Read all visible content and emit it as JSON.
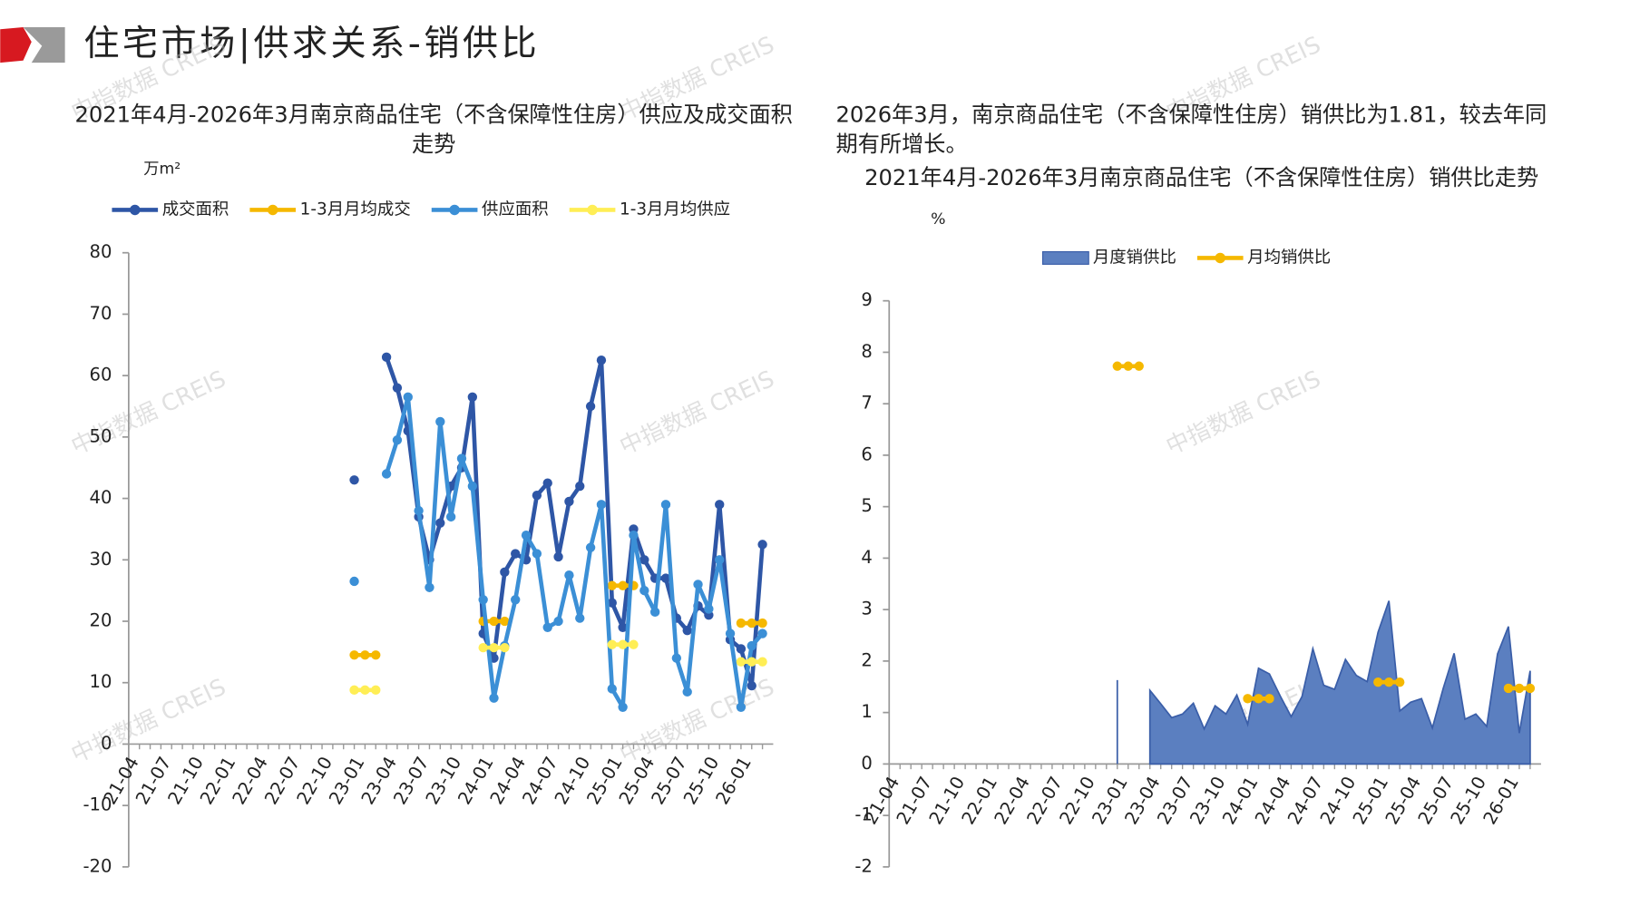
{
  "header": {
    "title": "住宅市场|供求关系-销供比"
  },
  "note": "2026年3月，南京商品住宅（不含保障性住房）销供比为1.81，较去年同期有所增长。",
  "watermark": "中指数据 CREIS",
  "chart_data": [
    {
      "type": "line",
      "title": "2021年4月-2026年3月南京商品住宅（不含保障性住房）供应及成交面积走势",
      "y_label": "万m²",
      "legend": "top",
      "categories": [
        "21-04",
        null,
        null,
        "21-07",
        null,
        null,
        "21-10",
        null,
        null,
        "22-01",
        null,
        null,
        "22-04",
        null,
        null,
        "22-07",
        null,
        null,
        "22-10",
        null,
        null,
        "23-01",
        null,
        null,
        "23-04",
        null,
        null,
        "23-07",
        null,
        null,
        "23-10",
        null,
        null,
        "24-01",
        null,
        null,
        "24-04",
        null,
        null,
        "24-07",
        null,
        null,
        "24-10",
        null,
        null,
        "25-01",
        null,
        null,
        "25-04",
        null,
        null,
        "25-07",
        null,
        null,
        "25-10",
        null,
        null,
        "26-01",
        null,
        null
      ],
      "ylim": [
        -20,
        80
      ],
      "yticks": [
        -20,
        -10,
        0,
        10,
        20,
        30,
        40,
        50,
        60,
        70,
        80
      ],
      "series": [
        {
          "name": "成交面积",
          "color": "#2e56a6",
          "values": [
            null,
            null,
            null,
            null,
            null,
            null,
            null,
            null,
            null,
            null,
            null,
            null,
            null,
            null,
            null,
            null,
            null,
            null,
            null,
            null,
            null,
            43,
            null,
            null,
            63,
            58,
            51,
            37,
            30,
            36,
            42,
            45,
            56.5,
            18,
            14,
            28,
            31,
            30,
            40.5,
            42.5,
            30.5,
            39.5,
            42,
            55,
            62.5,
            23,
            19,
            35,
            30,
            27,
            27,
            20.5,
            18.5,
            22.5,
            21,
            39,
            17,
            15.5,
            9.5,
            32.5
          ]
        },
        {
          "name": "1-3月月均成交",
          "color": "#f5b800",
          "values": [
            null,
            null,
            null,
            null,
            null,
            null,
            null,
            null,
            null,
            null,
            null,
            null,
            null,
            null,
            null,
            null,
            null,
            null,
            null,
            null,
            null,
            14.5,
            14.5,
            14.5,
            null,
            null,
            null,
            null,
            null,
            null,
            null,
            null,
            null,
            20,
            20,
            20,
            null,
            null,
            null,
            null,
            null,
            null,
            null,
            null,
            null,
            25.8,
            25.8,
            25.8,
            null,
            null,
            null,
            null,
            null,
            null,
            null,
            null,
            null,
            19.7,
            19.7,
            19.7
          ]
        },
        {
          "name": "供应面积",
          "color": "#3b8fd6",
          "values": [
            null,
            null,
            null,
            null,
            null,
            null,
            null,
            null,
            null,
            null,
            null,
            null,
            null,
            null,
            null,
            null,
            null,
            null,
            null,
            null,
            null,
            26.5,
            null,
            null,
            44,
            49.5,
            56.5,
            38,
            25.5,
            52.5,
            37,
            46.5,
            42,
            23.5,
            7.5,
            16,
            23.5,
            34,
            31,
            19,
            20,
            27.5,
            20.5,
            32,
            39,
            9,
            6,
            34,
            25,
            21.5,
            39,
            14,
            8.5,
            26,
            22,
            30,
            18,
            6,
            16,
            18
          ]
        },
        {
          "name": "1-3月月均供应",
          "color": "#ffee55",
          "values": [
            null,
            null,
            null,
            null,
            null,
            null,
            null,
            null,
            null,
            null,
            null,
            null,
            null,
            null,
            null,
            null,
            null,
            null,
            null,
            null,
            null,
            8.8,
            8.8,
            8.8,
            null,
            null,
            null,
            null,
            null,
            null,
            null,
            null,
            null,
            15.7,
            15.7,
            15.7,
            null,
            null,
            null,
            null,
            null,
            null,
            null,
            null,
            null,
            16.2,
            16.2,
            16.2,
            null,
            null,
            null,
            null,
            null,
            null,
            null,
            null,
            null,
            13.4,
            13.4,
            13.4
          ]
        }
      ]
    },
    {
      "type": "area",
      "title": "2021年4月-2026年3月南京商品住宅（不含保障性住房）销供比走势",
      "y_label": "%",
      "legend": "top",
      "categories": [
        "21-04",
        null,
        null,
        "21-07",
        null,
        null,
        "21-10",
        null,
        null,
        "22-01",
        null,
        null,
        "22-04",
        null,
        null,
        "22-07",
        null,
        null,
        "22-10",
        null,
        null,
        "23-01",
        null,
        null,
        "23-04",
        null,
        null,
        "23-07",
        null,
        null,
        "23-10",
        null,
        null,
        "24-01",
        null,
        null,
        "24-04",
        null,
        null,
        "24-07",
        null,
        null,
        "24-10",
        null,
        null,
        "25-01",
        null,
        null,
        "25-04",
        null,
        null,
        "25-07",
        null,
        null,
        "25-10",
        null,
        null,
        "26-01",
        null,
        null
      ],
      "ylim": [
        -2,
        9
      ],
      "yticks": [
        -2,
        -1,
        0,
        1,
        2,
        3,
        4,
        5,
        6,
        7,
        8,
        9
      ],
      "series": [
        {
          "name": "月度销供比",
          "color": "#5b7fc0",
          "type": "area",
          "values": [
            null,
            null,
            null,
            null,
            null,
            null,
            null,
            null,
            null,
            null,
            null,
            null,
            null,
            null,
            null,
            null,
            null,
            null,
            null,
            null,
            null,
            1.63,
            null,
            null,
            1.43,
            1.17,
            0.9,
            0.97,
            1.18,
            0.68,
            1.13,
            0.97,
            1.34,
            0.77,
            1.86,
            1.75,
            1.32,
            0.92,
            1.31,
            2.24,
            1.53,
            1.45,
            2.03,
            1.72,
            1.6,
            2.56,
            3.17,
            1.03,
            1.2,
            1.27,
            0.7,
            1.47,
            2.15,
            0.87,
            0.97,
            0.73,
            2.14,
            2.67,
            0.6,
            1.81
          ]
        },
        {
          "name": "月均销供比",
          "color": "#f5b800",
          "type": "line",
          "values": [
            null,
            null,
            null,
            null,
            null,
            null,
            null,
            null,
            null,
            null,
            null,
            null,
            null,
            null,
            null,
            null,
            null,
            null,
            null,
            null,
            null,
            7.73,
            7.73,
            7.73,
            null,
            null,
            null,
            null,
            null,
            null,
            null,
            null,
            null,
            1.27,
            1.27,
            1.27,
            null,
            null,
            null,
            null,
            null,
            null,
            null,
            null,
            null,
            1.59,
            1.59,
            1.59,
            null,
            null,
            null,
            null,
            null,
            null,
            null,
            null,
            null,
            1.47,
            1.47,
            1.47
          ]
        }
      ]
    }
  ]
}
